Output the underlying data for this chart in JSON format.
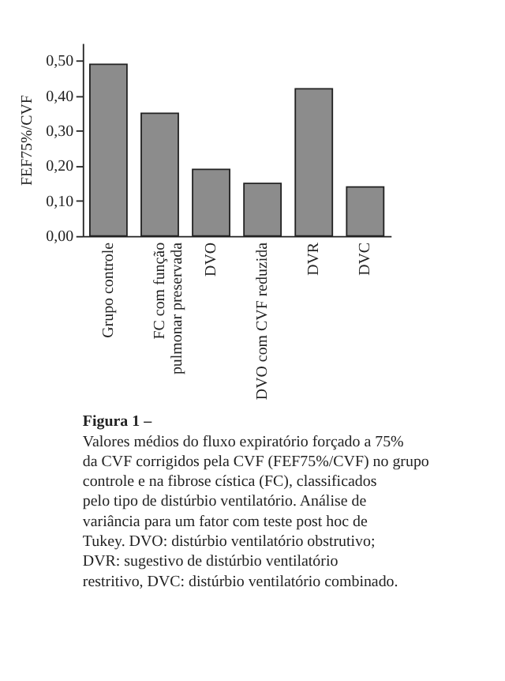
{
  "chart_data": {
    "type": "bar",
    "title": "Figura 1 –",
    "ylabel": "FEF75%/CVF",
    "categories": [
      "Grupo controle",
      "FC com função\npulmonar preservada",
      "DVO",
      "DVO com CVF reduzida",
      "DVR",
      "DVC"
    ],
    "values": [
      0.49,
      0.35,
      0.19,
      0.15,
      0.42,
      0.14
    ],
    "color": "#8c8c8c",
    "ylim": [
      0,
      0.55
    ],
    "yticks": [
      {
        "value": 0,
        "label": "0,00"
      },
      {
        "value": 0.1,
        "label": "0,10"
      },
      {
        "value": 0.2,
        "label": "0,20"
      },
      {
        "value": 0.3,
        "label": "0,30"
      },
      {
        "value": 0.4,
        "label": "0,40"
      },
      {
        "value": 0.5,
        "label": "0,50"
      }
    ],
    "grid": false,
    "annotations": [
      "Valores médios do fluxo expiratório forçado a 75% da CVF corrigidos pela CVF (FEF75%/CVF) no grupo controle e na fibrose cística (FC), classificados pelo tipo de distúrbio ventilatório. Análise de variância para um fator com teste post hoc de Tukey. DVO: distúrbio ventilatório obstrutivo; DVR: sugestivo de distúrbio ventilatório restritivo, DVC: distúrbio ventilatório combinado."
    ]
  }
}
